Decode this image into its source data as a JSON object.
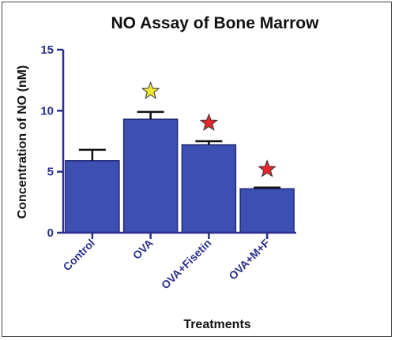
{
  "chart_data": {
    "type": "bar",
    "title": "NO Assay of Bone Marrow",
    "xlabel": "Treatments",
    "ylabel": "Concentration of NO (nM)",
    "categories": [
      "Control",
      "OVA",
      "OVA+Fisetin",
      "OVA+M+F"
    ],
    "values": [
      5.9,
      9.3,
      7.2,
      3.6
    ],
    "error_upper": [
      6.8,
      9.9,
      7.5,
      3.7
    ],
    "ylim": [
      0,
      15
    ],
    "yticks": [
      "0",
      "5",
      "10",
      "15"
    ],
    "markers": [
      {
        "category": "OVA",
        "shape": "star",
        "color": "#f2e632",
        "y": 11.6
      },
      {
        "category": "OVA+Fisetin",
        "shape": "star",
        "color": "#e8262b",
        "y": 9.0
      },
      {
        "category": "OVA+M+F",
        "shape": "star",
        "color": "#e8262b",
        "y": 5.2
      }
    ],
    "bar_color": "#3d4fb0",
    "axis_color": "#2b2f8a",
    "grid": false
  }
}
